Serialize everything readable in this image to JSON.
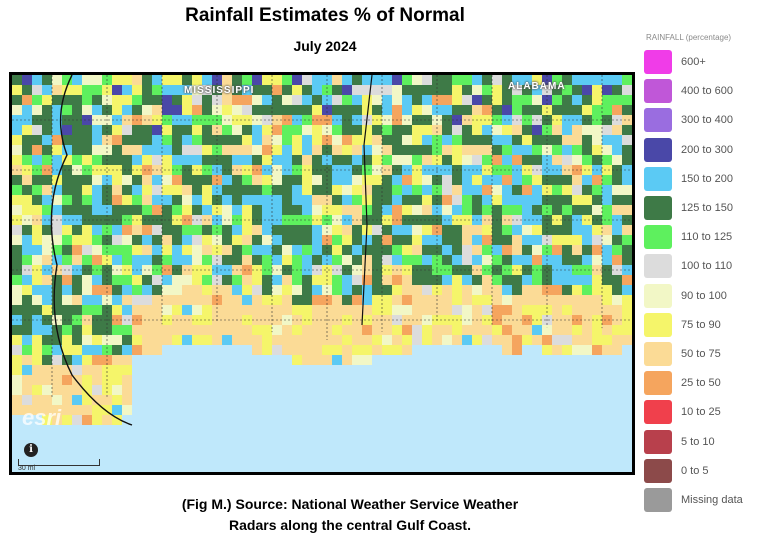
{
  "title": "Rainfall Estimates % of Normal",
  "subtitle": "July 2024",
  "map": {
    "state_labels": [
      "MISSISSIPPI",
      "ALABAMA"
    ],
    "esri_logo": "esri",
    "info_icon": "i",
    "scale_label": "30 mi"
  },
  "legend": {
    "title": "RAINFALL (percentage)",
    "items": [
      {
        "label": "600+",
        "color": "#f03ce8"
      },
      {
        "label": "400 to 600",
        "color": "#c057d8"
      },
      {
        "label": "300 to 400",
        "color": "#9a6de0"
      },
      {
        "label": "200 to 300",
        "color": "#4a48a8"
      },
      {
        "label": "150 to 200",
        "color": "#5bcaf4"
      },
      {
        "label": "125 to 150",
        "color": "#3e7a47"
      },
      {
        "label": "110 to 125",
        "color": "#5ef05e"
      },
      {
        "label": "100 to 110",
        "color": "#dcdcdc"
      },
      {
        "label": "90 to 100",
        "color": "#f2f7c6"
      },
      {
        "label": "75 to 90",
        "color": "#f5f56a"
      },
      {
        "label": "50 to 75",
        "color": "#fbdb96"
      },
      {
        "label": "25 to 50",
        "color": "#f5a55e"
      },
      {
        "label": "10 to 25",
        "color": "#f0404c"
      },
      {
        "label": "5 to 10",
        "color": "#b8404c"
      },
      {
        "label": "0 to 5",
        "color": "#8c4a4a"
      },
      {
        "label": "Missing data",
        "color": "#9a9a9a"
      }
    ]
  },
  "caption": {
    "line1": "(Fig M.) Source: National Weather Service Weather",
    "line2": "Radars along the central Gulf Coast."
  }
}
